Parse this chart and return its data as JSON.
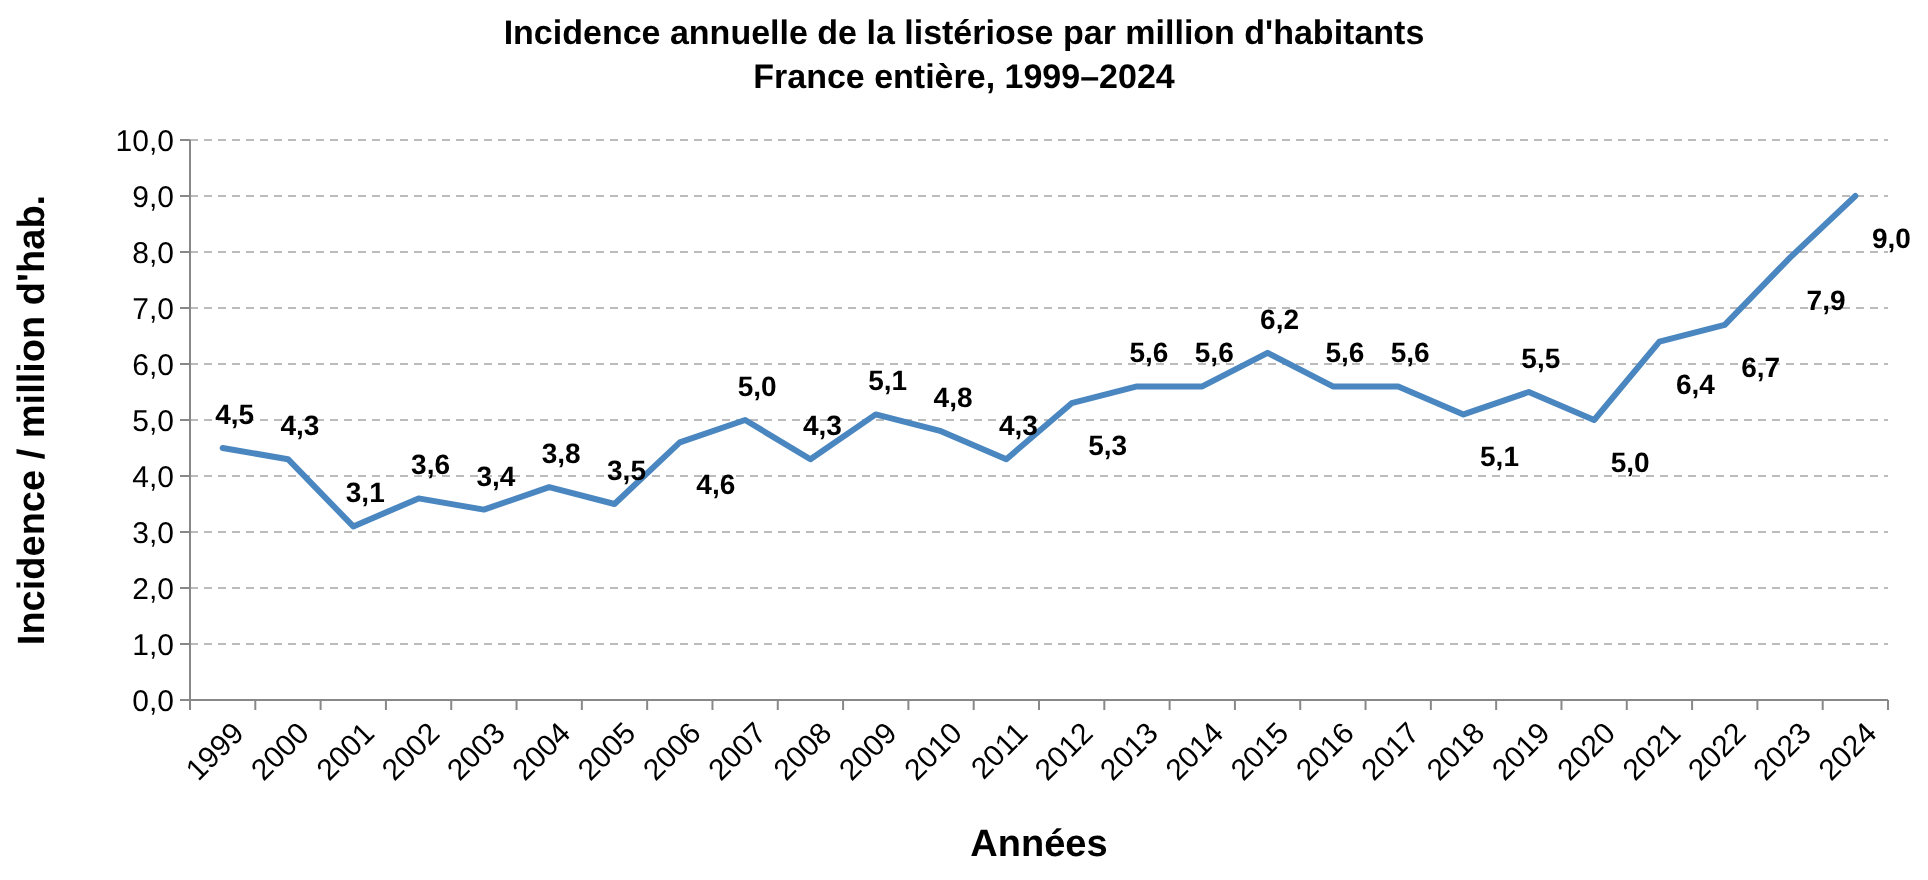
{
  "chart_data": {
    "type": "line",
    "title": "Incidence annuelle de la listériose par million d'habitants",
    "subtitle": "France entière, 1999–2024",
    "xlabel": "Années",
    "ylabel": "Incidence / million d'hab.",
    "categories": [
      "1999",
      "2000",
      "2001",
      "2002",
      "2003",
      "2004",
      "2005",
      "2006",
      "2007",
      "2008",
      "2009",
      "2010",
      "2011",
      "2012",
      "2013",
      "2014",
      "2015",
      "2016",
      "2017",
      "2018",
      "2019",
      "2020",
      "2021",
      "2022",
      "2023",
      "2024"
    ],
    "series": [
      {
        "color": "#4a86c0",
        "values": [
          4.5,
          4.3,
          3.1,
          3.6,
          3.4,
          3.8,
          3.5,
          4.6,
          5.0,
          4.3,
          5.1,
          4.8,
          4.3,
          5.3,
          5.6,
          5.6,
          6.2,
          5.6,
          5.6,
          5.1,
          5.5,
          5.0,
          6.4,
          6.7,
          7.9,
          9.0
        ],
        "value_labels": [
          "4,5",
          "4,3",
          "3,1",
          "3,6",
          "3,4",
          "3,8",
          "3,5",
          "4,6",
          "5,0",
          "4,3",
          "5,1",
          "4,8",
          "4,3",
          "5,3",
          "5,6",
          "5,6",
          "6,2",
          "5,6",
          "5,6",
          "5,1",
          "5,5",
          "5,0",
          "6,4",
          "6,7",
          "7,9",
          "9,0"
        ]
      }
    ],
    "ylim": [
      0,
      10
    ],
    "yticks": [
      {
        "value": 0,
        "label": "0,0"
      },
      {
        "value": 1,
        "label": "1,0"
      },
      {
        "value": 2,
        "label": "2,0"
      },
      {
        "value": 3,
        "label": "3,0"
      },
      {
        "value": 4,
        "label": "4,0"
      },
      {
        "value": 5,
        "label": "5,0"
      },
      {
        "value": 6,
        "label": "6,0"
      },
      {
        "value": 7,
        "label": "7,0"
      },
      {
        "value": 8,
        "label": "8,0"
      },
      {
        "value": 9,
        "label": "9,0"
      },
      {
        "value": 10,
        "label": "10,0"
      }
    ],
    "grid": "y",
    "line_style": "solid",
    "marker": "none"
  }
}
